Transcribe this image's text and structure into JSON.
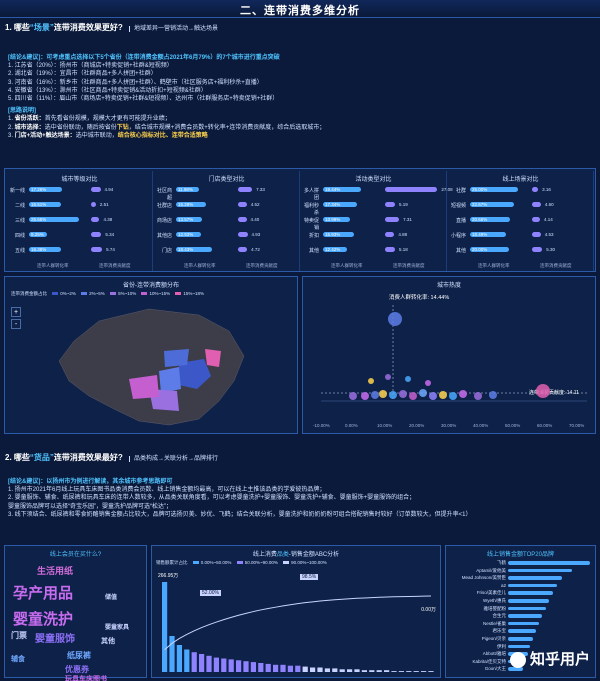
{
  "header": {
    "title": "二、连带消费多维分析"
  },
  "section1": {
    "q_prefix": "1. 哪些",
    "q_highlight": "“场景”",
    "q_suffix": "连带消费效果更好?",
    "sub": "地域差异一营销活动→触达场景",
    "conclusion_title": "[结论&建议]：可考虑重点选择以下5个省份（连带消费金额占2021年6月79%）的7个城市进行重点突破",
    "items": [
      "1. 江苏省（20%）：扬州市（商城店+特卖促销+社群&短视频）",
      "2. 湖北省（19%）：宜昌市（社群商品+多人拼团+社群）",
      "3. 河南省（16%）：新乡市（社群商品+多人拼团+社群）、鹤壁市（社区服务店+福利秒杀+直播）",
      "4. 安徽省（13%）：滁州市（社区商品+特卖促销&活动折扣+短视频&社群）",
      "5. 四川省（11%）：眉山市（商场店+特卖促销+社群&短视频）、达州市（社群服务店+特卖促销+社群）"
    ],
    "think_title": "[思路说明]",
    "think": [
      {
        "n": "1. ",
        "b": "省份活跃：",
        "t": "首先看省份规模，规模大才更有可能提升业绩；"
      },
      {
        "n": "2. ",
        "b": "城市选择：",
        "t": "选中省份联动，随后按省份",
        "y": "下钻",
        "t2": "，结合城市规模+消费会员数+转化率+连带消费贡献度，综合后选取城市；"
      },
      {
        "n": "3. ",
        "b": "门店+活动+触达场景：",
        "t": "选中城市联动，",
        "y": "结合核心指标对比、连带合适策略"
      }
    ]
  },
  "mini_charts": [
    {
      "title": "城市等级对比",
      "labels": [
        "新一线",
        "二线",
        "三线",
        "四线",
        "五线"
      ],
      "a": [
        17.26,
        16.51,
        25.65,
        9.25,
        16.38
      ],
      "b": [
        4.94,
        2.51,
        4.38,
        5.34,
        5.74
      ],
      "foot_a": "连带人群转化率",
      "foot_b": "连带消费贡献度"
    },
    {
      "title": "门店类型对比",
      "labels": [
        "社区商超",
        "社群店",
        "商场店",
        "其他店",
        "门店"
      ],
      "a": [
        11.98,
        15.28,
        13.57,
        12.93,
        18.43
      ],
      "b": [
        7.33,
        4.52,
        4.4,
        4.93,
        4.72
      ],
      "foot_a": "连带人群转化率",
      "foot_b": "连带消费贡献度"
    },
    {
      "title": "活动类型对比",
      "labels": [
        "多人拼团",
        "福利秒杀",
        "特卖促销",
        "折扣",
        "其他"
      ],
      "a": [
        19.44,
        17.34,
        13.99,
        15.93,
        12.42
      ],
      "b": [
        27.08,
        5.19,
        7.31,
        4.88,
        5.18
      ],
      "foot_a": "连带人群转化率",
      "foot_b": "连带消费贡献度"
    },
    {
      "title": "线上场景对比",
      "labels": [
        "社群",
        "短视频",
        "直播",
        "小程序",
        "其他"
      ],
      "a": [
        25.0,
        22.67,
        20.66,
        18.49,
        20.0
      ],
      "b": [
        3.16,
        4.6,
        4.14,
        4.53,
        5.3
      ],
      "foot_a": "连带人群转化率",
      "foot_b": "连带消费贡献度"
    }
  ],
  "map": {
    "title": "省份-连带消费额分布",
    "legend_label": "连带消费金额占比",
    "legend": [
      "0%~2%",
      "2%~5%",
      "5%~10%",
      "10%~15%",
      "15%~18%"
    ],
    "colors": [
      "#3b57c8",
      "#5d7ce8",
      "#9a6fe0",
      "#c55fd0",
      "#e05fb0"
    ],
    "zoom_in": "+",
    "zoom_out": "-"
  },
  "scatter": {
    "title": "城市热度",
    "ann_top": "消费人群转化率: 14.44%",
    "ann_right": "连带消费贡献度: 14.11",
    "x_ticks": [
      "-10.00%",
      "0.00%",
      "10.00%",
      "20.00%",
      "30.00%",
      "40.00%",
      "50.00%",
      "60.00%",
      "70.00%"
    ],
    "y_label": "会员新增数"
  },
  "section2": {
    "q_prefix": "2. 哪些",
    "q_highlight": "“货品”",
    "q_suffix": "连带消费效果最好?",
    "sub": "品类构成→关联分析→品牌排行",
    "conclusion_title": "[结论&建议]：以扬州市为例进行解读，其余城市参考思路即可",
    "items": [
      "1. 扬州市2021年6月线上玩具车床图书品类消费会员数、线上销售金额均最高，可以在线上主推该品类的学爱彼热品牌；",
      "2. 婴童服饰、辅食、纸尿裤和玩具车床的连带人数较多，从品类关联角度看，可以考虑婴童洗护+婴童服饰、婴童洗护+辅食、婴童服饰+婴童服饰的组合；",
      "   婴童服饰品牌可以选择“奇宝乐园”，婴童洗护品牌可选“松达”；",
      "3. 线下须结合、纸尿裤和零食奶酪销售金额占比较大，品牌可选扬贝美、妙优、飞鹤；结合关联分析，婴童洗护和奶奶奶粉可组合搭配销售时较好（订单数较大，但提升率<1）"
    ]
  },
  "wordcloud": {
    "title": "线上会员在买什么?",
    "words": [
      {
        "t": "孕产用品",
        "c": "#c86cf0",
        "s": 15
      },
      {
        "t": "婴童洗护",
        "c": "#c86cf0",
        "s": 15
      },
      {
        "t": "婴童服饰",
        "c": "#8a6ff5",
        "s": 10
      },
      {
        "t": "生活用纸",
        "c": "#d06cd8",
        "s": 9
      },
      {
        "t": "纸尿裤",
        "c": "#6fa8ff",
        "s": 8
      },
      {
        "t": "优惠券",
        "c": "#8a6ff5",
        "s": 8
      },
      {
        "t": "门票",
        "c": "#c8d4ff",
        "s": 8
      },
      {
        "t": "玩具车床图书",
        "c": "#c86cf0",
        "s": 7
      },
      {
        "t": "辅食",
        "c": "#6fa8ff",
        "s": 7
      },
      {
        "t": "其他",
        "c": "#c8d4ff",
        "s": 7
      },
      {
        "t": "储值",
        "c": "#c8d4ff",
        "s": 6
      },
      {
        "t": "婴童家具",
        "c": "#c8d4ff",
        "s": 6
      }
    ]
  },
  "abc": {
    "title_prefix": "线上消费",
    "title_hl": "品类",
    "title_suffix": "-销售金额ABC分析",
    "legend_label": "销售额累计占比",
    "legend": [
      "0.00%~50.00%",
      "50.00%~90.00%",
      "90.00%~100.00%"
    ],
    "bar_top": "266.95万",
    "label_mid": "52.00%",
    "label_right": "98.5%",
    "label_end": "0.00万"
  },
  "brands": {
    "title": "线上销售金额TOP20品牌",
    "names": [
      "飞鹤",
      "Aptamil/爱他美",
      "Mead Johnson/美赞臣",
      "a2",
      "Friso/美素佳儿",
      "Wyeth/惠氏",
      "雅培婴配粉",
      "合生元",
      "Nestle/雀巢",
      "君乐宝",
      "Pigeon/贝亲",
      "伊利",
      "Abbott/雅培",
      "Kabrita/佳贝艾特",
      "Goon/大王"
    ],
    "values": [
      100,
      78,
      66,
      60,
      55,
      50,
      46,
      42,
      38,
      34,
      30,
      27,
      24,
      21,
      18
    ]
  },
  "watermark": "知乎用户"
}
